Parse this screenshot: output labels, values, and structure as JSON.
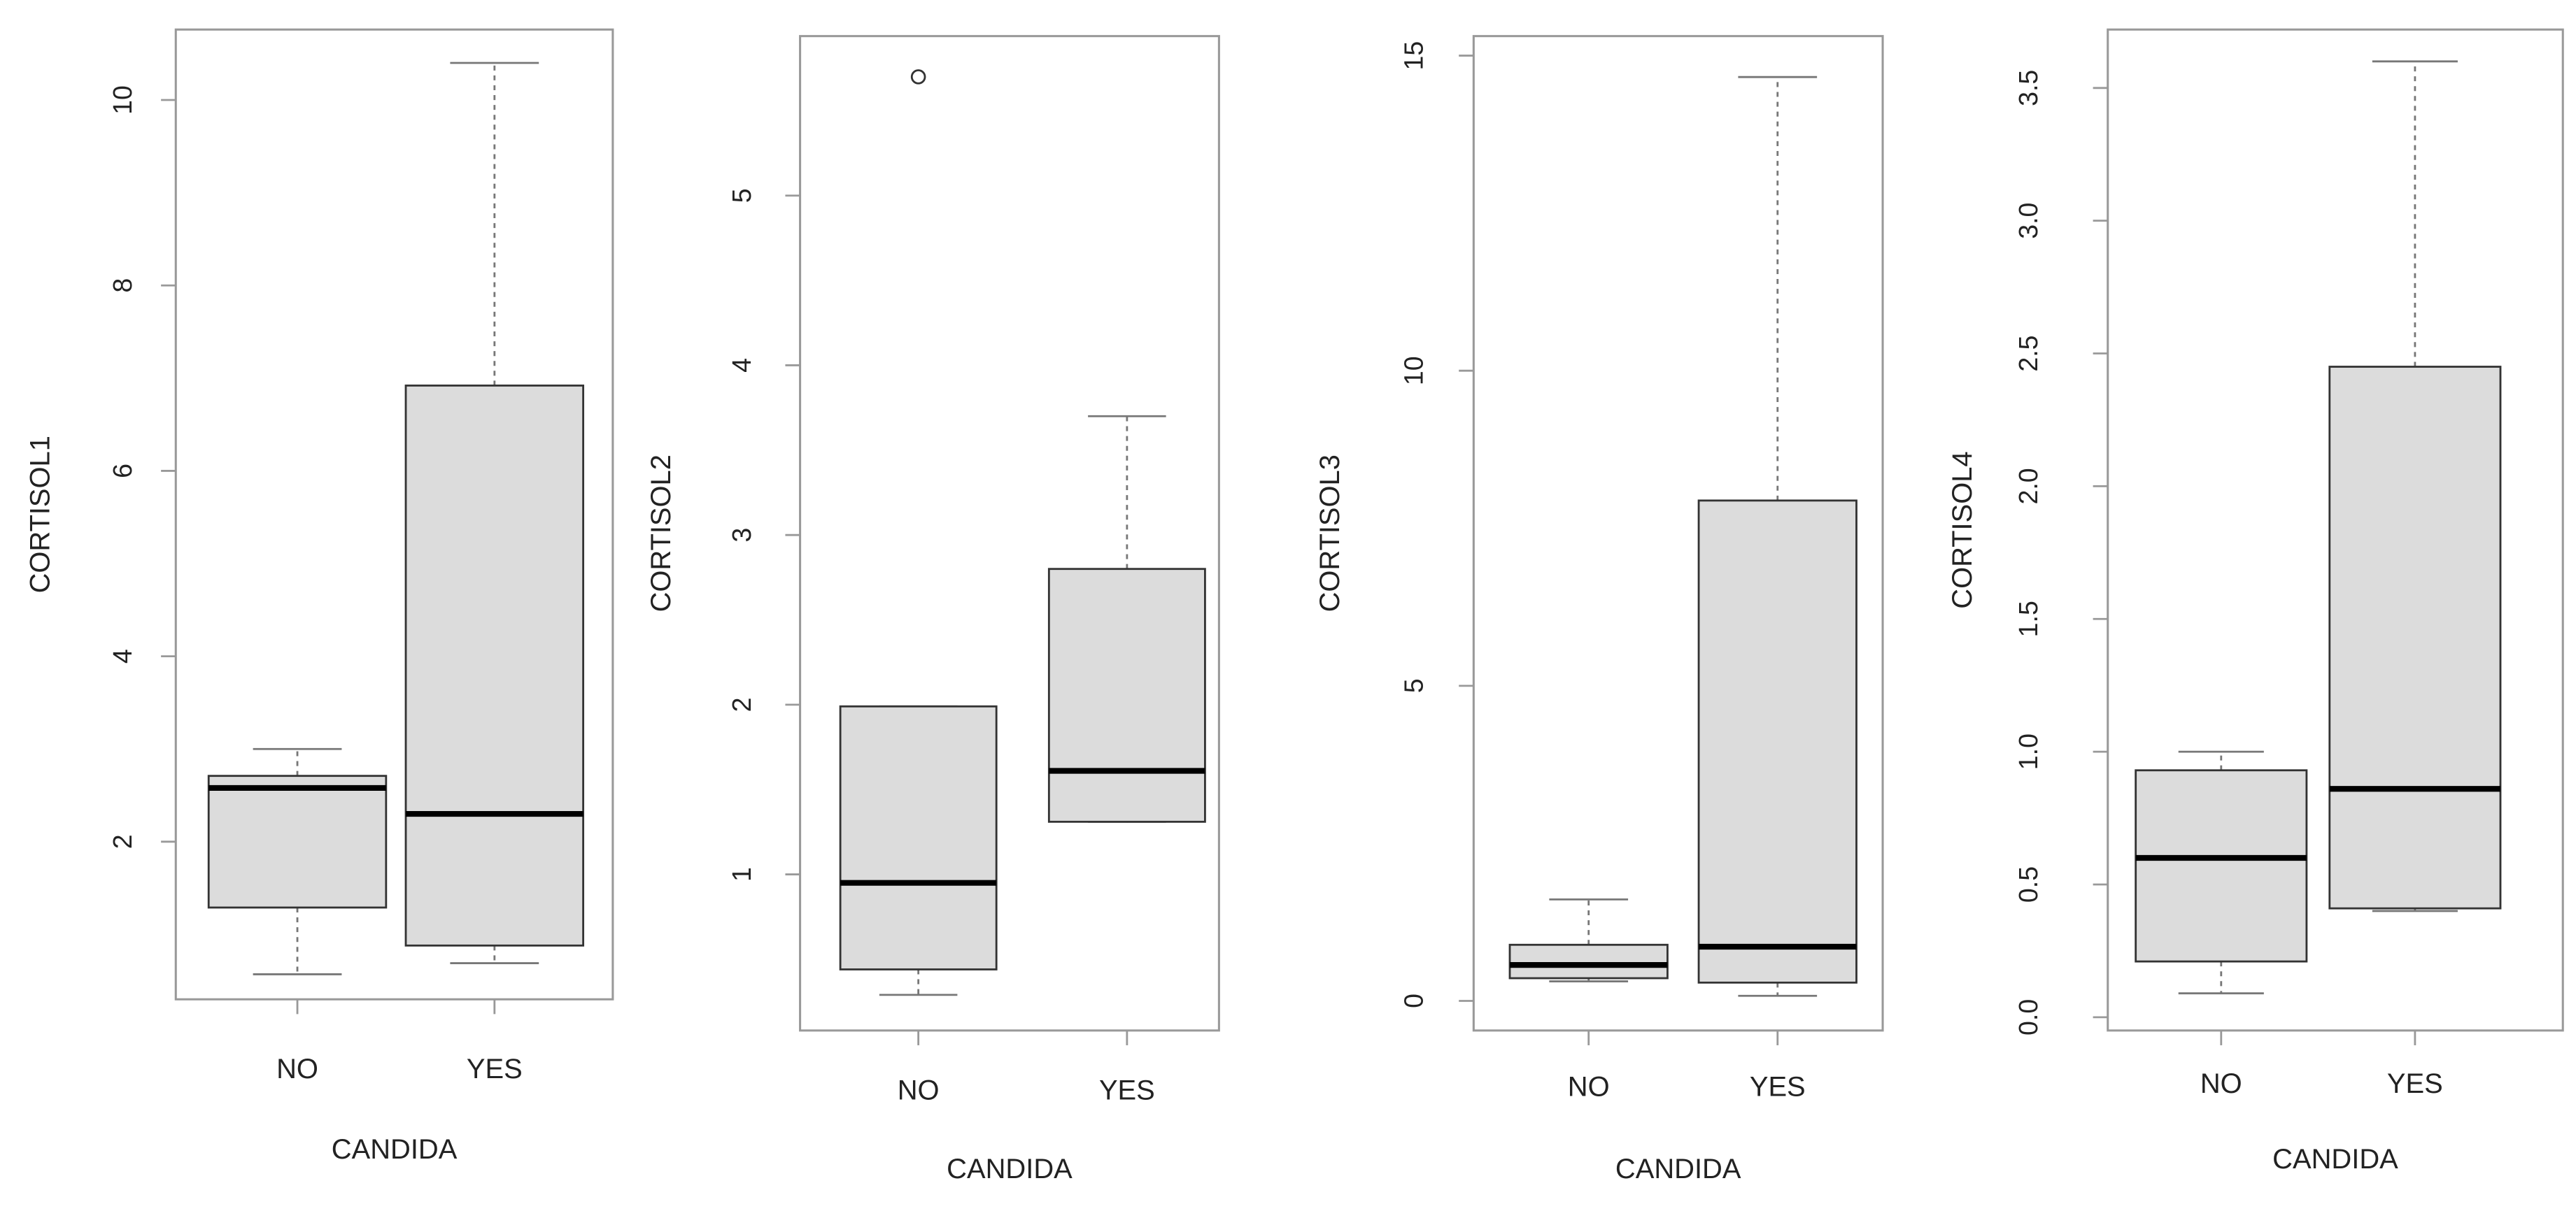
{
  "colors": {
    "box_fill": "#dcdcdc",
    "box_stroke": "#333333",
    "median": "#000000",
    "whisker": "#777777",
    "frame": "#999999"
  },
  "chart_data": [
    {
      "type": "box",
      "ylabel": "CORTISOL1",
      "xlabel": "CANDIDA",
      "categories": [
        "NO",
        "YES"
      ],
      "yticks": [
        2,
        4,
        6,
        8,
        10
      ],
      "ytick_labels": [
        "2",
        "4",
        "6",
        "8",
        "10"
      ],
      "ylim": [
        0.3,
        10.76
      ],
      "boxes": [
        {
          "whisker_low": 0.57,
          "q1": 1.29,
          "median": 2.58,
          "q3": 2.71,
          "whisker_high": 3.0,
          "outliers": []
        },
        {
          "whisker_low": 0.69,
          "q1": 0.88,
          "median": 2.3,
          "q3": 6.92,
          "whisker_high": 10.4,
          "outliers": []
        }
      ]
    },
    {
      "type": "box",
      "ylabel": "CORTISOL2",
      "xlabel": "CANDIDA",
      "categories": [
        "NO",
        "YES"
      ],
      "yticks": [
        1,
        2,
        3,
        4,
        5
      ],
      "ytick_labels": [
        "1",
        "2",
        "3",
        "4",
        "5"
      ],
      "ylim": [
        0.08,
        5.94
      ],
      "boxes": [
        {
          "whisker_low": 0.29,
          "q1": 0.44,
          "median": 0.95,
          "q3": 1.99,
          "whisker_high": 1.99,
          "outliers": [
            5.7
          ]
        },
        {
          "whisker_low": 1.31,
          "q1": 1.31,
          "median": 1.61,
          "q3": 2.8,
          "whisker_high": 3.7,
          "outliers": []
        }
      ]
    },
    {
      "type": "box",
      "ylabel": "CORTISOL3",
      "xlabel": "CANDIDA",
      "categories": [
        "NO",
        "YES"
      ],
      "yticks": [
        0,
        5,
        10,
        15
      ],
      "ytick_labels": [
        "0",
        "5",
        "10",
        "15"
      ],
      "ylim": [
        -0.47,
        15.31
      ],
      "boxes": [
        {
          "whisker_low": 0.31,
          "q1": 0.36,
          "median": 0.57,
          "q3": 0.89,
          "whisker_high": 1.61,
          "outliers": []
        },
        {
          "whisker_low": 0.08,
          "q1": 0.29,
          "median": 0.86,
          "q3": 7.94,
          "whisker_high": 14.66,
          "outliers": []
        }
      ]
    },
    {
      "type": "box",
      "ylabel": "CORTISOL4",
      "xlabel": "CANDIDA",
      "categories": [
        "NO",
        "YES"
      ],
      "yticks": [
        0,
        0.5,
        1,
        1.5,
        2,
        2.5,
        3,
        3.5
      ],
      "ytick_labels": [
        "0.0",
        "0.5",
        "1.0",
        "1.5",
        "2.0",
        "2.5",
        "3.0",
        "3.5"
      ],
      "ylim": [
        -0.05,
        3.72
      ],
      "boxes": [
        {
          "whisker_low": 0.09,
          "q1": 0.21,
          "median": 0.6,
          "q3": 0.93,
          "whisker_high": 1.0,
          "outliers": []
        },
        {
          "whisker_low": 0.4,
          "q1": 0.41,
          "median": 0.86,
          "q3": 2.45,
          "whisker_high": 3.6,
          "outliers": []
        }
      ]
    }
  ]
}
